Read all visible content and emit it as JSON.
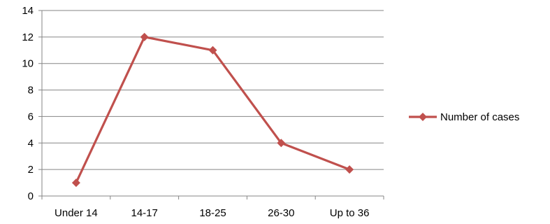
{
  "chart_data": {
    "type": "line",
    "categories": [
      "Under 14",
      "14-17",
      "18-25",
      "26-30",
      "Up to 36"
    ],
    "series": [
      {
        "name": "Number of cases",
        "values": [
          1,
          12,
          11,
          4,
          2
        ]
      }
    ],
    "ylim": [
      0,
      14
    ],
    "yticks": [
      0,
      2,
      4,
      6,
      8,
      10,
      12,
      14
    ],
    "grid": true,
    "legend": "right",
    "colors": {
      "series": "#C0504D",
      "grid": "#868686",
      "axis": "#868686"
    }
  }
}
